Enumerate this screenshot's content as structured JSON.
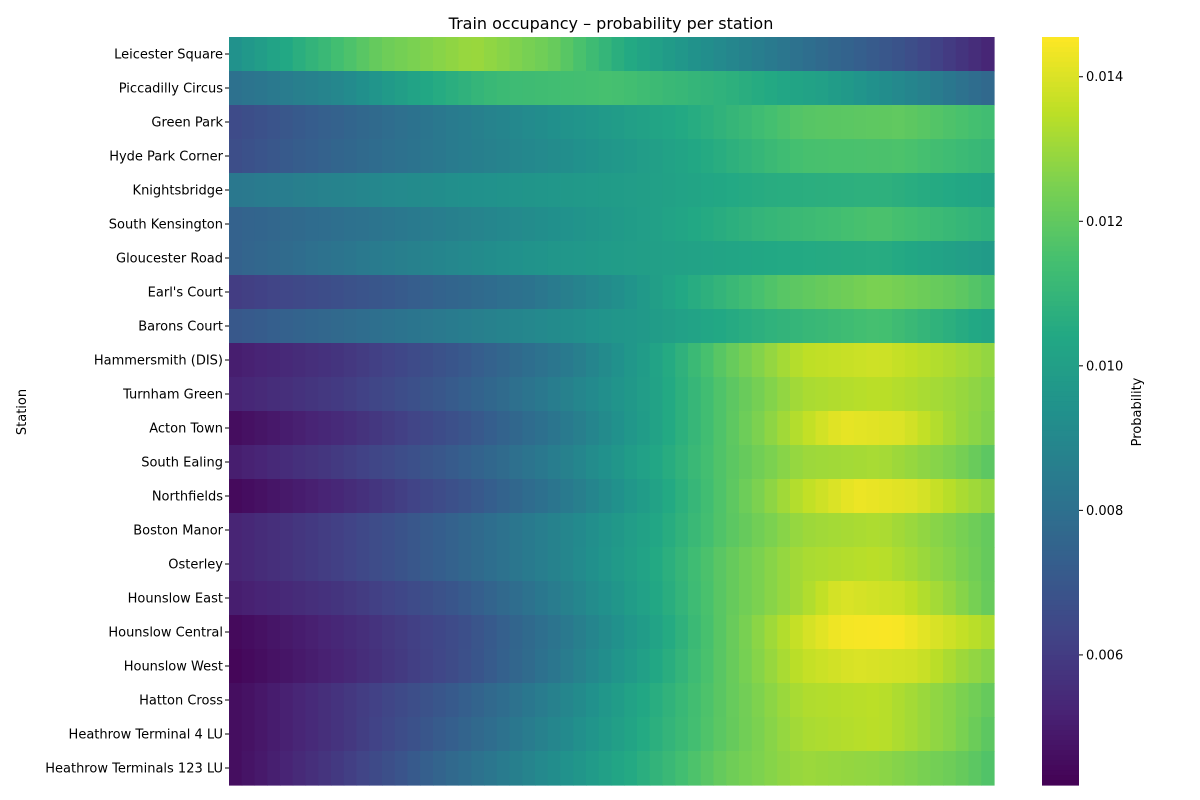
{
  "chart_data": {
    "type": "heatmap",
    "title": "Train occupancy – probability per station",
    "xlabel": "",
    "ylabel": "Station",
    "colorbar_label": "Probability",
    "colormap": "viridis",
    "vmin": 0.0042,
    "vmax": 0.01455,
    "colorbar_ticks": [
      0.006,
      0.008,
      0.01,
      0.012,
      0.014
    ],
    "colorbar_tick_labels": [
      "0.006",
      "0.008",
      "0.010",
      "0.012",
      "0.014"
    ],
    "x_tick_labels_shown": false,
    "n_columns": 60,
    "rows": [
      {
        "station": "Leicester Square",
        "profile": [
          [
            0,
            0.0093
          ],
          [
            0.1,
            0.0108
          ],
          [
            0.2,
            0.0122
          ],
          [
            0.32,
            0.013
          ],
          [
            0.42,
            0.0122
          ],
          [
            0.52,
            0.0105
          ],
          [
            0.62,
            0.0093
          ],
          [
            0.75,
            0.008
          ],
          [
            0.88,
            0.0068
          ],
          [
            1,
            0.0052
          ]
        ]
      },
      {
        "station": "Piccadilly Circus",
        "profile": [
          [
            0,
            0.008
          ],
          [
            0.15,
            0.009
          ],
          [
            0.25,
            0.0103
          ],
          [
            0.35,
            0.0112
          ],
          [
            0.5,
            0.0115
          ],
          [
            0.65,
            0.0108
          ],
          [
            0.78,
            0.01
          ],
          [
            0.9,
            0.0088
          ],
          [
            1,
            0.0076
          ]
        ]
      },
      {
        "station": "Green Park",
        "profile": [
          [
            0,
            0.0065
          ],
          [
            0.15,
            0.0075
          ],
          [
            0.3,
            0.0085
          ],
          [
            0.45,
            0.0095
          ],
          [
            0.6,
            0.0105
          ],
          [
            0.75,
            0.0118
          ],
          [
            0.88,
            0.012
          ],
          [
            1,
            0.0113
          ]
        ]
      },
      {
        "station": "Hyde Park Corner",
        "profile": [
          [
            0,
            0.0066
          ],
          [
            0.15,
            0.0076
          ],
          [
            0.3,
            0.0085
          ],
          [
            0.45,
            0.0093
          ],
          [
            0.6,
            0.0103
          ],
          [
            0.75,
            0.0115
          ],
          [
            0.88,
            0.0116
          ],
          [
            1,
            0.011
          ]
        ]
      },
      {
        "station": "Knightsbridge",
        "profile": [
          [
            0,
            0.0083
          ],
          [
            0.2,
            0.009
          ],
          [
            0.4,
            0.0096
          ],
          [
            0.55,
            0.01
          ],
          [
            0.7,
            0.0106
          ],
          [
            0.85,
            0.0108
          ],
          [
            1,
            0.0102
          ]
        ]
      },
      {
        "station": "South Kensington",
        "profile": [
          [
            0,
            0.0074
          ],
          [
            0.2,
            0.0082
          ],
          [
            0.4,
            0.0092
          ],
          [
            0.55,
            0.01
          ],
          [
            0.7,
            0.011
          ],
          [
            0.85,
            0.0116
          ],
          [
            1,
            0.0108
          ]
        ]
      },
      {
        "station": "Gloucester Road",
        "profile": [
          [
            0,
            0.0074
          ],
          [
            0.2,
            0.0085
          ],
          [
            0.4,
            0.0095
          ],
          [
            0.55,
            0.01
          ],
          [
            0.7,
            0.0104
          ],
          [
            0.85,
            0.0106
          ],
          [
            1,
            0.0098
          ]
        ]
      },
      {
        "station": "Earl's Court",
        "profile": [
          [
            0,
            0.006
          ],
          [
            0.2,
            0.007
          ],
          [
            0.4,
            0.0082
          ],
          [
            0.5,
            0.0092
          ],
          [
            0.6,
            0.0105
          ],
          [
            0.72,
            0.0118
          ],
          [
            0.85,
            0.0125
          ],
          [
            0.95,
            0.012
          ],
          [
            1,
            0.0115
          ]
        ]
      },
      {
        "station": "Barons Court",
        "profile": [
          [
            0,
            0.007
          ],
          [
            0.2,
            0.008
          ],
          [
            0.4,
            0.009
          ],
          [
            0.55,
            0.0098
          ],
          [
            0.7,
            0.0108
          ],
          [
            0.85,
            0.0115
          ],
          [
            1,
            0.0102
          ]
        ]
      },
      {
        "station": "Hammersmith (DIS)",
        "profile": [
          [
            0,
            0.005
          ],
          [
            0.15,
            0.0058
          ],
          [
            0.3,
            0.007
          ],
          [
            0.45,
            0.0085
          ],
          [
            0.55,
            0.01
          ],
          [
            0.65,
            0.012
          ],
          [
            0.75,
            0.0135
          ],
          [
            0.85,
            0.0138
          ],
          [
            0.95,
            0.0132
          ],
          [
            1,
            0.0128
          ]
        ]
      },
      {
        "station": "Turnham Green",
        "profile": [
          [
            0,
            0.0052
          ],
          [
            0.15,
            0.006
          ],
          [
            0.3,
            0.0072
          ],
          [
            0.45,
            0.0088
          ],
          [
            0.55,
            0.01
          ],
          [
            0.65,
            0.0118
          ],
          [
            0.75,
            0.0132
          ],
          [
            0.85,
            0.0135
          ],
          [
            0.95,
            0.013
          ],
          [
            1,
            0.0126
          ]
        ]
      },
      {
        "station": "Acton Town",
        "profile": [
          [
            0,
            0.0045
          ],
          [
            0.15,
            0.0055
          ],
          [
            0.3,
            0.0068
          ],
          [
            0.45,
            0.0085
          ],
          [
            0.55,
            0.01
          ],
          [
            0.65,
            0.0118
          ],
          [
            0.75,
            0.0135
          ],
          [
            0.8,
            0.0142
          ],
          [
            0.88,
            0.014
          ],
          [
            0.95,
            0.013
          ],
          [
            1,
            0.0125
          ]
        ]
      },
      {
        "station": "South Ealing",
        "profile": [
          [
            0,
            0.005
          ],
          [
            0.15,
            0.006
          ],
          [
            0.3,
            0.0072
          ],
          [
            0.45,
            0.0088
          ],
          [
            0.55,
            0.0102
          ],
          [
            0.65,
            0.0118
          ],
          [
            0.75,
            0.013
          ],
          [
            0.85,
            0.0132
          ],
          [
            0.95,
            0.0125
          ],
          [
            1,
            0.0118
          ]
        ]
      },
      {
        "station": "Northfields",
        "profile": [
          [
            0,
            0.0044
          ],
          [
            0.15,
            0.0054
          ],
          [
            0.3,
            0.0068
          ],
          [
            0.45,
            0.0085
          ],
          [
            0.55,
            0.01
          ],
          [
            0.65,
            0.0118
          ],
          [
            0.75,
            0.0135
          ],
          [
            0.82,
            0.0143
          ],
          [
            0.9,
            0.014
          ],
          [
            0.96,
            0.0132
          ],
          [
            1,
            0.0128
          ]
        ]
      },
      {
        "station": "Boston Manor",
        "profile": [
          [
            0,
            0.0052
          ],
          [
            0.15,
            0.0062
          ],
          [
            0.3,
            0.0075
          ],
          [
            0.45,
            0.009
          ],
          [
            0.55,
            0.0102
          ],
          [
            0.65,
            0.0118
          ],
          [
            0.75,
            0.013
          ],
          [
            0.85,
            0.0133
          ],
          [
            0.95,
            0.0125
          ],
          [
            1,
            0.012
          ]
        ]
      },
      {
        "station": "Osterley",
        "profile": [
          [
            0,
            0.0052
          ],
          [
            0.15,
            0.0062
          ],
          [
            0.3,
            0.0075
          ],
          [
            0.45,
            0.009
          ],
          [
            0.55,
            0.0103
          ],
          [
            0.65,
            0.012
          ],
          [
            0.75,
            0.0132
          ],
          [
            0.85,
            0.0135
          ],
          [
            0.95,
            0.0126
          ],
          [
            1,
            0.012
          ]
        ]
      },
      {
        "station": "Hounslow East",
        "profile": [
          [
            0,
            0.005
          ],
          [
            0.15,
            0.0058
          ],
          [
            0.3,
            0.007
          ],
          [
            0.45,
            0.0088
          ],
          [
            0.55,
            0.0102
          ],
          [
            0.65,
            0.012
          ],
          [
            0.75,
            0.0132
          ],
          [
            0.8,
            0.014
          ],
          [
            0.88,
            0.0137
          ],
          [
            0.95,
            0.0128
          ],
          [
            1,
            0.012
          ]
        ]
      },
      {
        "station": "Hounslow Central",
        "profile": [
          [
            0,
            0.0044
          ],
          [
            0.15,
            0.0054
          ],
          [
            0.3,
            0.0066
          ],
          [
            0.45,
            0.0085
          ],
          [
            0.55,
            0.01
          ],
          [
            0.65,
            0.012
          ],
          [
            0.75,
            0.0138
          ],
          [
            0.8,
            0.0144
          ],
          [
            0.87,
            0.0145
          ],
          [
            0.92,
            0.014
          ],
          [
            1,
            0.0132
          ]
        ]
      },
      {
        "station": "Hounslow West",
        "profile": [
          [
            0,
            0.0043
          ],
          [
            0.15,
            0.0053
          ],
          [
            0.3,
            0.0066
          ],
          [
            0.45,
            0.0086
          ],
          [
            0.55,
            0.0102
          ],
          [
            0.65,
            0.012
          ],
          [
            0.75,
            0.0136
          ],
          [
            0.82,
            0.014
          ],
          [
            0.9,
            0.0138
          ],
          [
            0.96,
            0.013
          ],
          [
            1,
            0.0126
          ]
        ]
      },
      {
        "station": "Hatton Cross",
        "profile": [
          [
            0,
            0.0045
          ],
          [
            0.15,
            0.0058
          ],
          [
            0.3,
            0.0072
          ],
          [
            0.45,
            0.009
          ],
          [
            0.55,
            0.0105
          ],
          [
            0.65,
            0.012
          ],
          [
            0.75,
            0.0133
          ],
          [
            0.85,
            0.0135
          ],
          [
            0.95,
            0.0126
          ],
          [
            1,
            0.012
          ]
        ]
      },
      {
        "station": "Heathrow Terminal 4 LU",
        "profile": [
          [
            0,
            0.0045
          ],
          [
            0.15,
            0.0058
          ],
          [
            0.3,
            0.0074
          ],
          [
            0.45,
            0.0092
          ],
          [
            0.55,
            0.0106
          ],
          [
            0.65,
            0.012
          ],
          [
            0.75,
            0.0132
          ],
          [
            0.85,
            0.0135
          ],
          [
            0.95,
            0.0126
          ],
          [
            1,
            0.0118
          ]
        ]
      },
      {
        "station": "Heathrow Terminals 123 LU",
        "profile": [
          [
            0,
            0.0045
          ],
          [
            0.15,
            0.006
          ],
          [
            0.3,
            0.0078
          ],
          [
            0.45,
            0.0095
          ],
          [
            0.55,
            0.0108
          ],
          [
            0.65,
            0.0122
          ],
          [
            0.75,
            0.013
          ],
          [
            0.85,
            0.0128
          ],
          [
            0.95,
            0.0122
          ],
          [
            1,
            0.0116
          ]
        ]
      }
    ]
  }
}
